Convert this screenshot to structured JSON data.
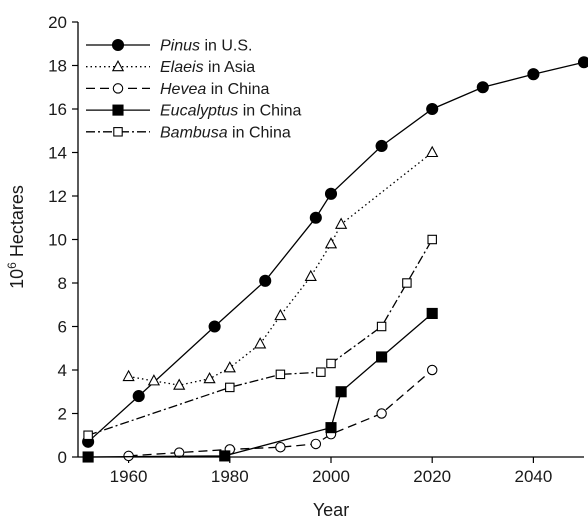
{
  "chart_data": {
    "type": "line",
    "title": "",
    "xlabel": "Year",
    "ylabel_base": "10",
    "ylabel_sup": "6",
    "ylabel_rest": " Hectares",
    "xlim": [
      1950,
      2050
    ],
    "ylim": [
      0,
      20
    ],
    "xticks": [
      1960,
      1980,
      2000,
      2020,
      2040
    ],
    "yticks": [
      0,
      2,
      4,
      6,
      8,
      10,
      12,
      14,
      16,
      18,
      20
    ],
    "grid": false,
    "legend_position": "top-left",
    "series": [
      {
        "name": "Pinus in U.S.",
        "genus": "Pinus",
        "region": " in U.S.",
        "marker": "circle-filled",
        "dash": "",
        "color": "#000000",
        "points": [
          [
            1952,
            0.7
          ],
          [
            1962,
            2.8
          ],
          [
            1977,
            6.0
          ],
          [
            1987,
            8.1
          ],
          [
            1997,
            11.0
          ],
          [
            2000,
            12.1
          ],
          [
            2010,
            14.3
          ],
          [
            2020,
            16.0
          ],
          [
            2030,
            17.0
          ],
          [
            2040,
            17.6
          ],
          [
            2050,
            18.15
          ]
        ]
      },
      {
        "name": "Elaeis in Asia",
        "genus": "Elaeis",
        "region": " in Asia",
        "marker": "triangle-open",
        "dash": "1.5 3",
        "color": "#000000",
        "points": [
          [
            1960,
            3.7
          ],
          [
            1965,
            3.5
          ],
          [
            1970,
            3.3
          ],
          [
            1976,
            3.6
          ],
          [
            1980,
            4.1
          ],
          [
            1986,
            5.2
          ],
          [
            1990,
            6.5
          ],
          [
            1996,
            8.3
          ],
          [
            2000,
            9.8
          ],
          [
            2002,
            10.7
          ],
          [
            2020,
            14.0
          ]
        ]
      },
      {
        "name": "Hevea in China",
        "genus": "Hevea",
        "region": " in China",
        "marker": "circle-open",
        "dash": "9 5",
        "color": "#000000",
        "points": [
          [
            1960,
            0.05
          ],
          [
            1970,
            0.2
          ],
          [
            1980,
            0.35
          ],
          [
            1990,
            0.45
          ],
          [
            1997,
            0.6
          ],
          [
            2000,
            1.05
          ],
          [
            2010,
            2.0
          ],
          [
            2020,
            4.0
          ]
        ]
      },
      {
        "name": "Eucalyptus in China",
        "genus": "Eucalyptus",
        "region": " in China",
        "marker": "square-filled",
        "dash": "",
        "color": "#000000",
        "points": [
          [
            1952,
            0.0
          ],
          [
            1979,
            0.05
          ],
          [
            2000,
            1.35
          ],
          [
            2002,
            3.0
          ],
          [
            2010,
            4.6
          ],
          [
            2020,
            6.6
          ]
        ]
      },
      {
        "name": "Bambusa in China",
        "genus": "Bambusa",
        "region": " in China",
        "marker": "square-open",
        "dash": "9 3 2 3",
        "color": "#000000",
        "points": [
          [
            1952,
            1.0
          ],
          [
            1980,
            3.2
          ],
          [
            1990,
            3.8
          ],
          [
            1998,
            3.9
          ],
          [
            2000,
            4.3
          ],
          [
            2010,
            6.0
          ],
          [
            2015,
            8.0
          ],
          [
            2020,
            10.0
          ]
        ]
      }
    ]
  }
}
